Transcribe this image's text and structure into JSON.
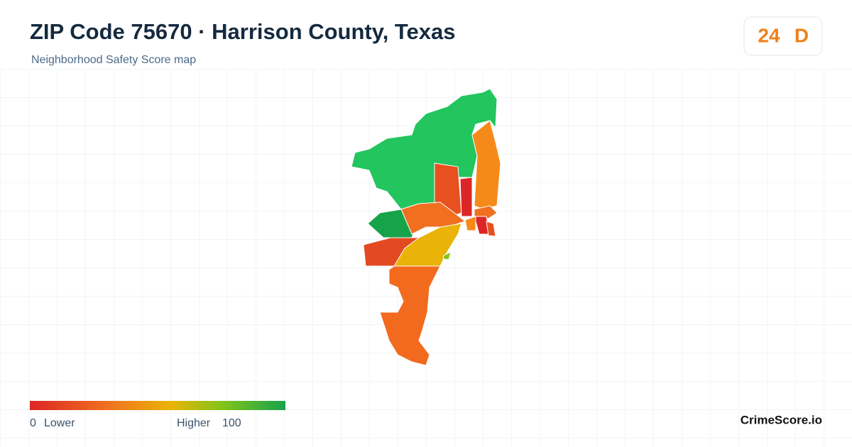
{
  "header": {
    "title": "ZIP Code 75670 · Harrison County, Texas",
    "subtitle": "Neighborhood Safety Score map"
  },
  "score": {
    "value": "24",
    "grade": "D"
  },
  "legend": {
    "min": "0",
    "min_label": "Lower",
    "max_label": "Higher",
    "max": "100"
  },
  "brand": "CrimeScore.io"
}
